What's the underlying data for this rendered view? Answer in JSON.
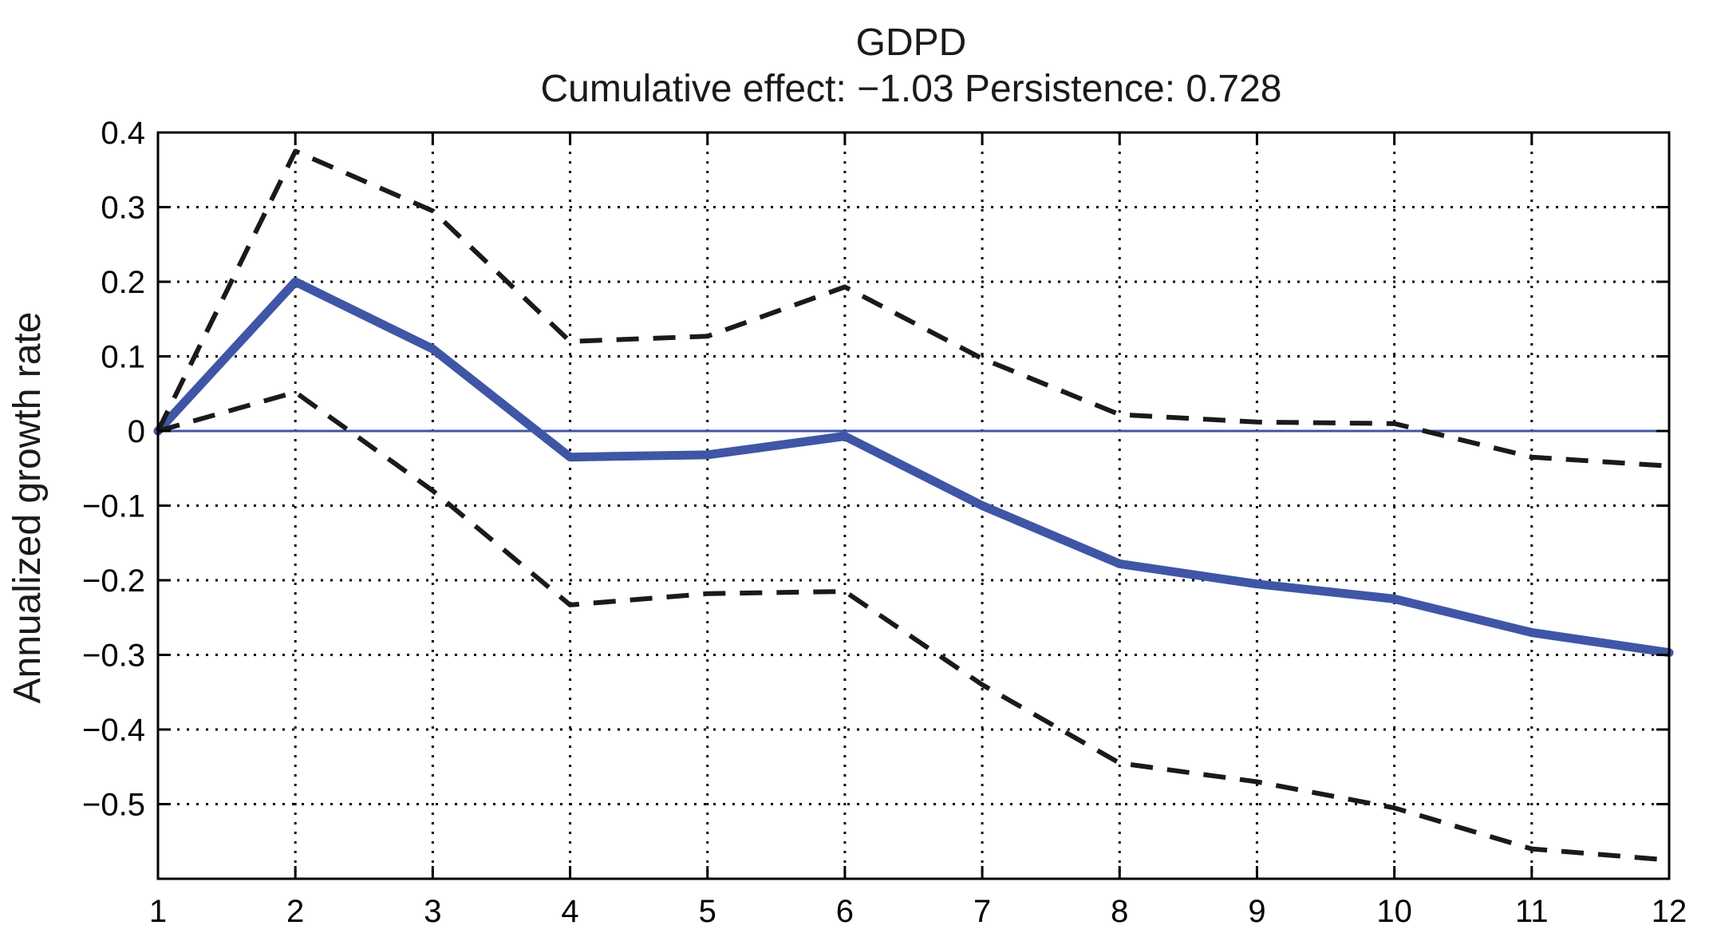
{
  "chart_data": {
    "type": "line",
    "title": "GDPD",
    "subtitle": "Cumulative effect: −1.03  Persistence: 0.728",
    "xlabel": "",
    "ylabel": "Annualized growth rate",
    "x": [
      1,
      2,
      3,
      4,
      5,
      6,
      7,
      8,
      9,
      10,
      11,
      12
    ],
    "xlim": [
      1,
      12
    ],
    "ylim": [
      -0.6,
      0.4
    ],
    "yticks": [
      0.4,
      0.3,
      0.2,
      0.1,
      0,
      -0.1,
      -0.2,
      -0.3,
      -0.4,
      -0.5
    ],
    "ytick_labels": [
      "0.4",
      "0.3",
      "0.2",
      "0.1",
      "0",
      "−0.1",
      "−0.2",
      "−0.3",
      "−0.4",
      "−0.5"
    ],
    "xtick_labels": [
      "1",
      "2",
      "3",
      "4",
      "5",
      "6",
      "7",
      "8",
      "9",
      "10",
      "11",
      "12"
    ],
    "grid": true,
    "zero_line": 0,
    "series": [
      {
        "style": "solid",
        "color": "#3f56a6",
        "values": [
          0.0,
          0.2,
          0.11,
          -0.035,
          -0.032,
          -0.007,
          -0.1,
          -0.178,
          -0.205,
          -0.225,
          -0.27,
          -0.297
        ]
      },
      {
        "style": "dashed",
        "color": "#1a1a1a",
        "values": [
          0.0,
          0.375,
          0.295,
          0.12,
          0.127,
          0.193,
          0.097,
          0.022,
          0.012,
          0.01,
          -0.035,
          -0.047
        ]
      },
      {
        "style": "dashed",
        "color": "#1a1a1a",
        "values": [
          0.0,
          0.052,
          -0.08,
          -0.233,
          -0.218,
          -0.215,
          -0.34,
          -0.445,
          -0.47,
          -0.505,
          -0.56,
          -0.575
        ]
      }
    ]
  }
}
